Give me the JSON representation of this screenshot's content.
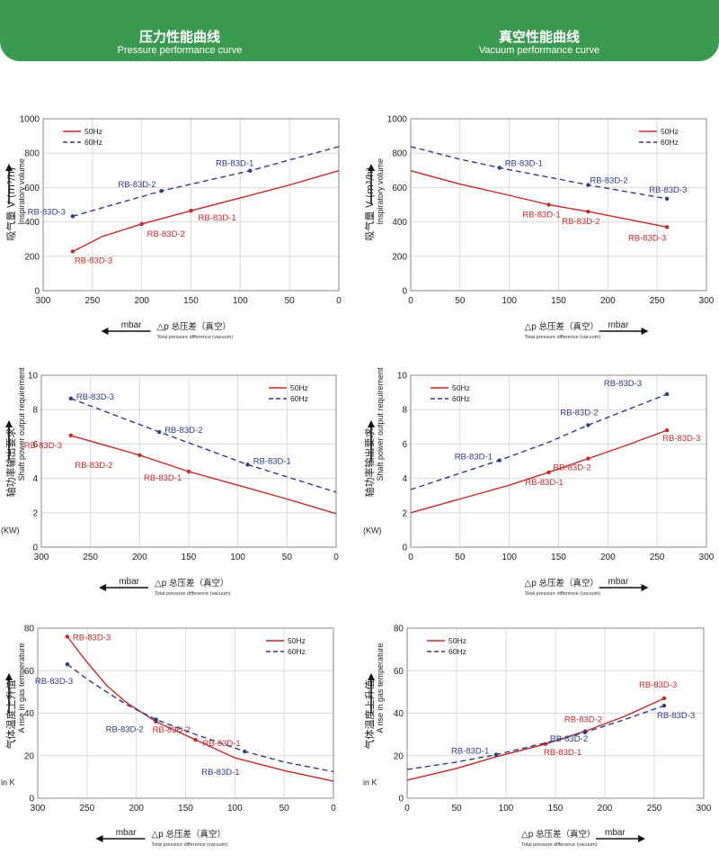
{
  "header": {
    "left_title_cn": "压力性能曲线",
    "left_title_en": "Pressure performance curve",
    "right_title_cn": "真空性能曲线",
    "right_title_en": "Vacuum performance curve"
  },
  "colors": {
    "banner": "#3b9a52",
    "hz50": "#c6282a",
    "hz60": "#2e3a86",
    "grid": "#d9d9d9"
  },
  "x_axis": {
    "delta_label": "△p",
    "label_cn": "总压差（真空）",
    "label_en": "Total pressure difference (vacuum)",
    "unit": "mbar"
  },
  "chart_data": [
    {
      "id": "pressure-volume",
      "type": "line",
      "ylabel_cn": "吸气量 V (m³/h)",
      "ylabel_en": "Inspiratory volume",
      "xlim": [
        300,
        0
      ],
      "ylim": [
        0,
        1000
      ],
      "xticks": [
        300,
        250,
        200,
        150,
        100,
        50,
        0
      ],
      "yticks": [
        0,
        200,
        400,
        600,
        800,
        1000
      ],
      "legend": "top-left",
      "series": [
        {
          "name": "50Hz",
          "style": "solid",
          "x": [
            270,
            240,
            200,
            150,
            100,
            50,
            0
          ],
          "values": [
            228,
            315,
            388,
            465,
            540,
            615,
            698
          ]
        },
        {
          "name": "60Hz",
          "style": "dashed",
          "x": [
            270,
            180,
            90,
            0
          ],
          "values": [
            433,
            580,
            698,
            838
          ]
        }
      ],
      "points": [
        {
          "series": 0,
          "x": 270,
          "y": 228,
          "label": "RB-83D-3"
        },
        {
          "series": 0,
          "x": 200,
          "y": 388,
          "label": "RB-83D-2"
        },
        {
          "series": 0,
          "x": 150,
          "y": 465,
          "label": "RB-83D-1"
        },
        {
          "series": 1,
          "x": 270,
          "y": 433,
          "label": "RB-83D-3"
        },
        {
          "series": 1,
          "x": 180,
          "y": 580,
          "label": "RB-83D-2"
        },
        {
          "series": 1,
          "x": 90,
          "y": 698,
          "label": "RB-83D-1"
        }
      ]
    },
    {
      "id": "vacuum-volume",
      "type": "line",
      "ylabel_cn": "吸气量 V (m³/h)",
      "ylabel_en": "Inspiratory volume",
      "xlim": [
        0,
        300
      ],
      "ylim": [
        0,
        1000
      ],
      "xticks": [
        0,
        50,
        100,
        150,
        200,
        250,
        300
      ],
      "yticks": [
        0,
        200,
        400,
        600,
        800,
        1000
      ],
      "legend": "top-right",
      "series": [
        {
          "name": "50Hz",
          "style": "solid",
          "x": [
            0,
            50,
            100,
            140,
            180,
            220,
            260
          ],
          "values": [
            698,
            620,
            555,
            500,
            460,
            415,
            370
          ]
        },
        {
          "name": "60Hz",
          "style": "dashed",
          "x": [
            0,
            50,
            90,
            140,
            180,
            220,
            260
          ],
          "values": [
            838,
            765,
            715,
            660,
            615,
            575,
            535
          ]
        }
      ],
      "points": [
        {
          "series": 0,
          "x": 140,
          "y": 500,
          "label": "RB-83D-1"
        },
        {
          "series": 0,
          "x": 180,
          "y": 460,
          "label": "RB-83D-2"
        },
        {
          "series": 0,
          "x": 260,
          "y": 370,
          "label": "RB-83D-3"
        },
        {
          "series": 1,
          "x": 90,
          "y": 715,
          "label": "RB-83D-1"
        },
        {
          "series": 1,
          "x": 180,
          "y": 615,
          "label": "RB-83D-2"
        },
        {
          "series": 1,
          "x": 260,
          "y": 535,
          "label": "RB-83D-3"
        }
      ]
    },
    {
      "id": "pressure-power",
      "type": "line",
      "ylabel_cn": "轴功率输出要求",
      "ylabel_en": "Shaft power output requirement",
      "unit": "(KW)",
      "xlim": [
        300,
        0
      ],
      "ylim": [
        0,
        10
      ],
      "xticks": [
        300,
        250,
        200,
        150,
        100,
        50,
        0
      ],
      "yticks": [
        0,
        2,
        4,
        6,
        8,
        10
      ],
      "legend": "top-right",
      "series": [
        {
          "name": "50Hz",
          "style": "solid",
          "x": [
            270,
            200,
            150,
            100,
            50,
            0
          ],
          "values": [
            6.5,
            5.35,
            4.4,
            3.6,
            2.8,
            1.95
          ]
        },
        {
          "name": "60Hz",
          "style": "dashed",
          "x": [
            270,
            180,
            90,
            0
          ],
          "values": [
            8.65,
            6.7,
            4.8,
            3.2
          ]
        }
      ],
      "points": [
        {
          "series": 0,
          "x": 270,
          "y": 6.5,
          "label": "RB-83D-3"
        },
        {
          "series": 0,
          "x": 200,
          "y": 5.35,
          "label": "RB-83D-2"
        },
        {
          "series": 0,
          "x": 150,
          "y": 4.4,
          "label": "RB-83D-1"
        },
        {
          "series": 1,
          "x": 270,
          "y": 8.65,
          "label": "RB-83D-3"
        },
        {
          "series": 1,
          "x": 180,
          "y": 6.7,
          "label": "RB-83D-2"
        },
        {
          "series": 1,
          "x": 90,
          "y": 4.8,
          "label": "RB-83D-1"
        }
      ]
    },
    {
      "id": "vacuum-power",
      "type": "line",
      "ylabel_cn": "轴功率输出要求",
      "ylabel_en": "Shaft power output requirement",
      "unit": "(KW)",
      "xlim": [
        0,
        300
      ],
      "ylim": [
        0,
        10
      ],
      "xticks": [
        0,
        50,
        100,
        150,
        200,
        250,
        300
      ],
      "yticks": [
        0,
        2,
        4,
        6,
        8,
        10
      ],
      "legend": "top-left",
      "series": [
        {
          "name": "50Hz",
          "style": "solid",
          "x": [
            0,
            50,
            100,
            140,
            180,
            220,
            260
          ],
          "values": [
            2.0,
            2.8,
            3.6,
            4.35,
            5.15,
            5.95,
            6.8
          ]
        },
        {
          "name": "60Hz",
          "style": "dashed",
          "x": [
            0,
            50,
            90,
            140,
            180,
            220,
            260
          ],
          "values": [
            3.35,
            4.3,
            5.05,
            6.1,
            7.1,
            8.0,
            8.9
          ]
        }
      ],
      "points": [
        {
          "series": 0,
          "x": 140,
          "y": 4.35,
          "label": "RB-83D-1"
        },
        {
          "series": 0,
          "x": 180,
          "y": 5.15,
          "label": "RB-83D-2"
        },
        {
          "series": 0,
          "x": 260,
          "y": 6.8,
          "label": "RB-83D-3"
        },
        {
          "series": 1,
          "x": 90,
          "y": 5.05,
          "label": "RB-83D-1"
        },
        {
          "series": 1,
          "x": 180,
          "y": 7.1,
          "label": "RB-83D-2"
        },
        {
          "series": 1,
          "x": 260,
          "y": 8.9,
          "label": "RB-83D-3"
        }
      ]
    },
    {
      "id": "pressure-temperature",
      "type": "line",
      "ylabel_cn": "气体温度上升值",
      "ylabel_en": "A rise in gas temperature",
      "unit": "in K",
      "xlim": [
        300,
        0
      ],
      "ylim": [
        0,
        80
      ],
      "xticks": [
        300,
        250,
        200,
        150,
        100,
        50,
        0
      ],
      "yticks": [
        0,
        20,
        40,
        60,
        80
      ],
      "legend": "top-right",
      "series": [
        {
          "name": "50Hz",
          "style": "solid",
          "x": [
            270,
            250,
            230,
            210,
            180,
            140,
            100,
            50,
            0
          ],
          "values": [
            76,
            64,
            53,
            45,
            36,
            27.5,
            19,
            13,
            8
          ]
        },
        {
          "name": "60Hz",
          "style": "dashed",
          "x": [
            270,
            250,
            230,
            210,
            180,
            140,
            90,
            50,
            0
          ],
          "values": [
            63,
            56,
            50,
            44,
            37,
            30,
            22,
            17,
            12.5
          ]
        }
      ],
      "points": [
        {
          "series": 0,
          "x": 270,
          "y": 76,
          "label": "RB-83D-3"
        },
        {
          "series": 0,
          "x": 180,
          "y": 36,
          "label": "RB-83D-2"
        },
        {
          "series": 0,
          "x": 140,
          "y": 27.5,
          "label": "RB-83D-1"
        },
        {
          "series": 1,
          "x": 270,
          "y": 63,
          "label": "RB-83D-3"
        },
        {
          "series": 1,
          "x": 180,
          "y": 37,
          "label": "RB-83D-2"
        },
        {
          "series": 1,
          "x": 90,
          "y": 22,
          "label": "RB-83D-1"
        }
      ]
    },
    {
      "id": "vacuum-temperature",
      "type": "line",
      "ylabel_cn": "气体温度上升值",
      "ylabel_en": "A rise in gas temperature",
      "unit": "in K",
      "xlim": [
        0,
        300
      ],
      "ylim": [
        0,
        80
      ],
      "xticks": [
        0,
        50,
        100,
        150,
        200,
        250,
        300
      ],
      "yticks": [
        0,
        20,
        40,
        60,
        80
      ],
      "legend": "top-left",
      "series": [
        {
          "name": "50Hz",
          "style": "solid",
          "x": [
            0,
            50,
            90,
            140,
            180,
            220,
            260
          ],
          "values": [
            8.5,
            14,
            19.5,
            25.5,
            31.5,
            38.5,
            47
          ]
        },
        {
          "name": "60Hz",
          "style": "dashed",
          "x": [
            0,
            50,
            90,
            140,
            180,
            220,
            260
          ],
          "values": [
            13.5,
            17,
            20.5,
            26,
            31,
            37,
            43.5
          ]
        }
      ],
      "points": [
        {
          "series": 0,
          "x": 140,
          "y": 25.5,
          "label": "RB-83D-1"
        },
        {
          "series": 0,
          "x": 180,
          "y": 31.5,
          "label": "RB-83D-2"
        },
        {
          "series": 0,
          "x": 260,
          "y": 47,
          "label": "RB-83D-3"
        },
        {
          "series": 1,
          "x": 90,
          "y": 20.5,
          "label": "RB-83D-1"
        },
        {
          "series": 1,
          "x": 180,
          "y": 31,
          "label": "RB-83D-2"
        },
        {
          "series": 1,
          "x": 260,
          "y": 43.5,
          "label": "RB-83D-3"
        }
      ]
    }
  ]
}
